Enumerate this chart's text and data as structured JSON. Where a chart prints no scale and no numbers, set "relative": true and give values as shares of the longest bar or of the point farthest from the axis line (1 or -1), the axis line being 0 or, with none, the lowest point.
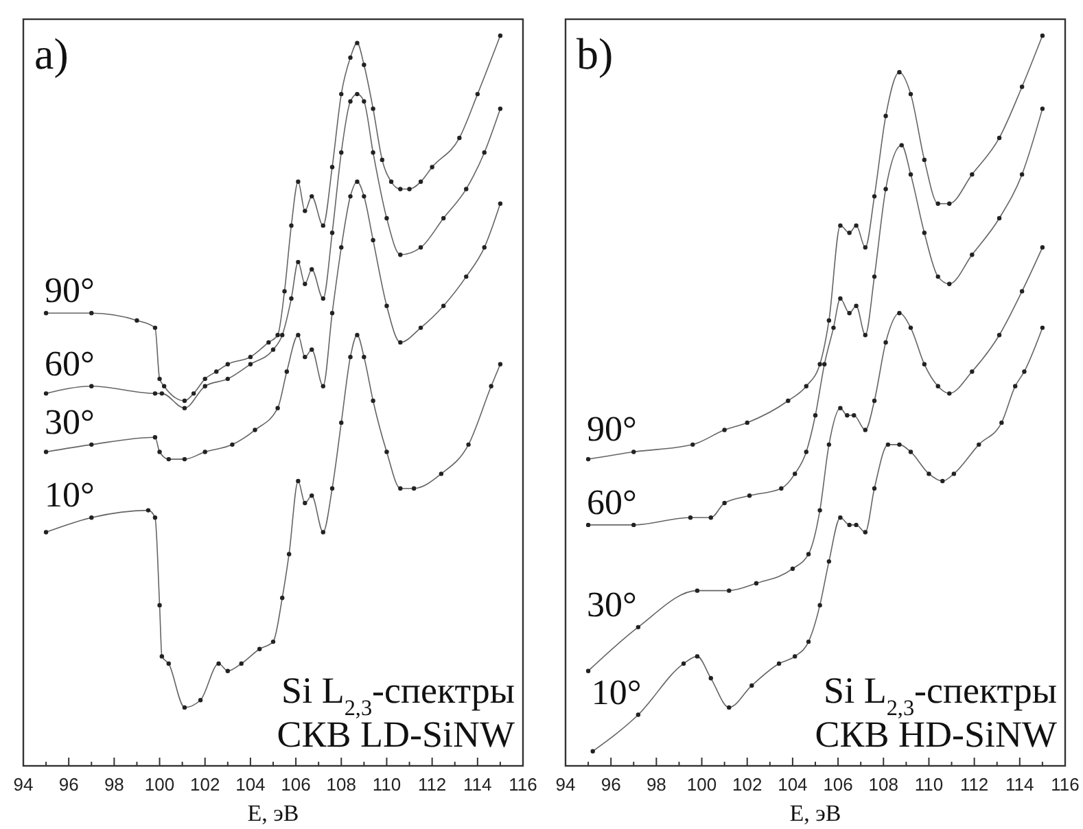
{
  "chart_data": [
    {
      "type": "line",
      "title": "a)",
      "xlabel": "E, эВ",
      "relative": true,
      "marker": "circle",
      "xlim": [
        94,
        116
      ],
      "xticks": [
        94,
        {
          "value": 95,
          "label": null
        },
        96,
        {
          "value": 97,
          "label": null
        },
        98,
        {
          "value": 99,
          "label": null
        },
        100,
        {
          "value": 101,
          "label": null
        },
        102,
        {
          "value": 103,
          "label": null
        },
        104,
        {
          "value": 105,
          "label": null
        },
        106,
        {
          "value": 107,
          "label": null
        },
        108,
        {
          "value": 109,
          "label": null
        },
        110,
        {
          "value": 111,
          "label": null
        },
        112,
        {
          "value": 113,
          "label": null
        },
        114,
        {
          "value": 115,
          "label": null
        },
        116
      ],
      "annotations": [
        "Si L$_{2,3}$-спектры",
        "СКВ LD-SiNW"
      ],
      "series": [
        {
          "name": "90°",
          "color": "#222222",
          "x": [
            95,
            97,
            99,
            99.8,
            100,
            100.2,
            101.1,
            101.5,
            102,
            102.5,
            103,
            104,
            104.8,
            105.2,
            105.5,
            105.8,
            106.1,
            106.4,
            106.7,
            107.2,
            107.6,
            108,
            108.4,
            108.7,
            109,
            109.4,
            109.8,
            110.2,
            110.6,
            111,
            111.5,
            112,
            113.2,
            114,
            115
          ],
          "values": [
            0.62,
            0.62,
            0.61,
            0.6,
            0.53,
            0.52,
            0.5,
            0.51,
            0.53,
            0.54,
            0.55,
            0.56,
            0.58,
            0.59,
            0.65,
            0.74,
            0.8,
            0.76,
            0.78,
            0.74,
            0.82,
            0.92,
            0.97,
            0.99,
            0.96,
            0.9,
            0.83,
            0.8,
            0.79,
            0.79,
            0.8,
            0.82,
            0.86,
            0.92,
            1
          ]
        },
        {
          "name": "60°",
          "color": "#222222",
          "x": [
            95,
            97,
            99.8,
            100.1,
            101.1,
            102,
            103,
            104,
            105,
            105.4,
            105.8,
            106.1,
            106.4,
            106.7,
            107.2,
            107.6,
            108,
            108.4,
            108.7,
            109,
            109.4,
            110,
            110.6,
            111.5,
            112.5,
            113.5,
            114.3,
            115
          ],
          "values": [
            0.51,
            0.52,
            0.51,
            0.51,
            0.49,
            0.52,
            0.53,
            0.55,
            0.57,
            0.59,
            0.64,
            0.69,
            0.66,
            0.68,
            0.64,
            0.73,
            0.84,
            0.91,
            0.92,
            0.91,
            0.84,
            0.75,
            0.7,
            0.71,
            0.75,
            0.79,
            0.84,
            0.9
          ]
        },
        {
          "name": "30°",
          "color": "#222222",
          "x": [
            95,
            97,
            99.8,
            100,
            100.4,
            101.1,
            102,
            103.2,
            104.2,
            105.2,
            105.6,
            106.1,
            106.4,
            106.7,
            107.2,
            107.6,
            108,
            108.4,
            108.7,
            109,
            109.4,
            110,
            110.6,
            111.5,
            112.5,
            113.5,
            114.3,
            115
          ],
          "values": [
            0.43,
            0.44,
            0.45,
            0.43,
            0.42,
            0.42,
            0.43,
            0.44,
            0.46,
            0.49,
            0.54,
            0.59,
            0.56,
            0.57,
            0.52,
            0.62,
            0.71,
            0.78,
            0.8,
            0.78,
            0.72,
            0.63,
            0.58,
            0.6,
            0.63,
            0.67,
            0.71,
            0.77
          ]
        },
        {
          "name": "10°",
          "color": "#222222",
          "x": [
            95,
            97,
            99.5,
            99.8,
            100,
            100.1,
            100.4,
            101.1,
            101.8,
            102.6,
            103,
            103.6,
            104.4,
            105,
            105.4,
            105.7,
            106.1,
            106.4,
            106.7,
            107.2,
            107.6,
            108,
            108.4,
            108.7,
            109,
            109.4,
            110,
            110.6,
            111.2,
            112.4,
            113.6,
            114.6,
            115
          ],
          "values": [
            0.32,
            0.34,
            0.35,
            0.34,
            0.22,
            0.15,
            0.14,
            0.08,
            0.09,
            0.14,
            0.13,
            0.14,
            0.16,
            0.17,
            0.23,
            0.29,
            0.39,
            0.36,
            0.37,
            0.32,
            0.38,
            0.47,
            0.56,
            0.59,
            0.56,
            0.5,
            0.43,
            0.38,
            0.38,
            0.4,
            0.44,
            0.52,
            0.55
          ]
        }
      ]
    },
    {
      "type": "line",
      "title": "b)",
      "xlabel": "E, эВ",
      "relative": true,
      "marker": "circle",
      "xlim": [
        94,
        116
      ],
      "xticks": [
        94,
        {
          "value": 95,
          "label": null
        },
        96,
        {
          "value": 97,
          "label": null
        },
        98,
        {
          "value": 99,
          "label": null
        },
        100,
        {
          "value": 101,
          "label": null
        },
        102,
        {
          "value": 103,
          "label": null
        },
        104,
        {
          "value": 105,
          "label": null
        },
        106,
        {
          "value": 107,
          "label": null
        },
        108,
        {
          "value": 109,
          "label": null
        },
        110,
        {
          "value": 111,
          "label": null
        },
        112,
        {
          "value": 113,
          "label": null
        },
        114,
        {
          "value": 115,
          "label": null
        },
        116
      ],
      "annotations": [
        "Si L$_{2,3}$-спектры",
        "СКВ HD-SiNW"
      ],
      "series": [
        {
          "name": "90°",
          "color": "#222222",
          "x": [
            95,
            97,
            99.6,
            101,
            102,
            103.8,
            104.6,
            105.2,
            105.6,
            106.1,
            106.5,
            106.8,
            107.2,
            107.6,
            108.1,
            108.7,
            109.2,
            109.8,
            110.4,
            110.9,
            111.9,
            113.1,
            114.1,
            115
          ],
          "values": [
            0.42,
            0.43,
            0.44,
            0.46,
            0.47,
            0.5,
            0.52,
            0.55,
            0.61,
            0.74,
            0.73,
            0.74,
            0.71,
            0.78,
            0.89,
            0.95,
            0.92,
            0.83,
            0.77,
            0.77,
            0.81,
            0.86,
            0.93,
            1
          ]
        },
        {
          "name": "60°",
          "color": "#222222",
          "x": [
            95,
            97,
            99.5,
            100.4,
            101,
            102.1,
            103.5,
            104.1,
            104.6,
            105,
            105.4,
            105.8,
            106.1,
            106.5,
            106.8,
            107.2,
            107.6,
            108.1,
            108.8,
            109.2,
            109.8,
            110.4,
            110.9,
            111.9,
            113.1,
            114.1,
            115
          ],
          "values": [
            0.33,
            0.33,
            0.34,
            0.34,
            0.36,
            0.37,
            0.38,
            0.4,
            0.43,
            0.48,
            0.55,
            0.6,
            0.64,
            0.62,
            0.63,
            0.59,
            0.67,
            0.79,
            0.85,
            0.81,
            0.73,
            0.67,
            0.66,
            0.7,
            0.75,
            0.81,
            0.9
          ]
        },
        {
          "name": "30°",
          "color": "#222222",
          "x": [
            95,
            97.2,
            99.8,
            101.2,
            102.4,
            104,
            104.7,
            105.2,
            105.6,
            106.1,
            106.4,
            106.7,
            107.2,
            107.6,
            108.1,
            108.7,
            109.2,
            109.8,
            110.4,
            110.9,
            111.9,
            113.1,
            114.1,
            115
          ],
          "values": [
            0.13,
            0.19,
            0.24,
            0.24,
            0.25,
            0.27,
            0.29,
            0.35,
            0.44,
            0.49,
            0.48,
            0.48,
            0.46,
            0.5,
            0.58,
            0.62,
            0.6,
            0.55,
            0.52,
            0.51,
            0.54,
            0.59,
            0.65,
            0.71
          ]
        },
        {
          "name": "10°",
          "color": "#222222",
          "x": [
            95.2,
            97.2,
            99.2,
            99.8,
            100.4,
            101.2,
            102.2,
            103.4,
            104.1,
            104.7,
            105.2,
            105.6,
            106.1,
            106.5,
            106.8,
            107.2,
            107.6,
            108.2,
            108.7,
            109.2,
            110,
            110.6,
            111.1,
            112.2,
            113.2,
            113.8,
            114.2,
            115
          ],
          "values": [
            0.02,
            0.07,
            0.14,
            0.15,
            0.12,
            0.08,
            0.11,
            0.14,
            0.15,
            0.17,
            0.22,
            0.28,
            0.34,
            0.33,
            0.33,
            0.32,
            0.38,
            0.44,
            0.44,
            0.43,
            0.4,
            0.39,
            0.4,
            0.44,
            0.47,
            0.52,
            0.54,
            0.6
          ]
        }
      ]
    }
  ]
}
